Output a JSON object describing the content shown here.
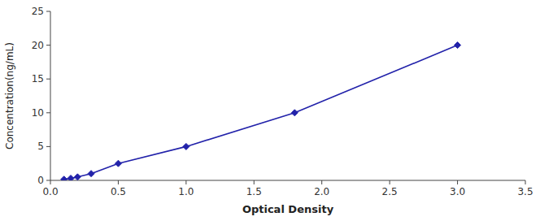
{
  "chart_data": {
    "type": "line",
    "x": [
      0.1,
      0.15,
      0.2,
      0.3,
      0.5,
      1.0,
      1.8,
      3.0
    ],
    "values": [
      0.15,
      0.3,
      0.5,
      1.0,
      2.5,
      5.0,
      10.0,
      20.0
    ],
    "color": "#2222aa",
    "marker": "diamond",
    "xlabel": "Optical Density",
    "ylabel": "Concentration(ng/mL)",
    "xlim": [
      0,
      3.5
    ],
    "ylim": [
      0,
      25
    ],
    "xticks": [
      {
        "value": 0,
        "label": "0.0"
      },
      0.5,
      {
        "value": 1,
        "label": "1.0"
      },
      1.5,
      {
        "value": 2,
        "label": "2.0"
      },
      2.5,
      {
        "value": 3,
        "label": "3.0"
      },
      3.5
    ],
    "yticks": [
      0,
      5,
      10,
      15,
      20,
      25
    ],
    "grid": false
  }
}
